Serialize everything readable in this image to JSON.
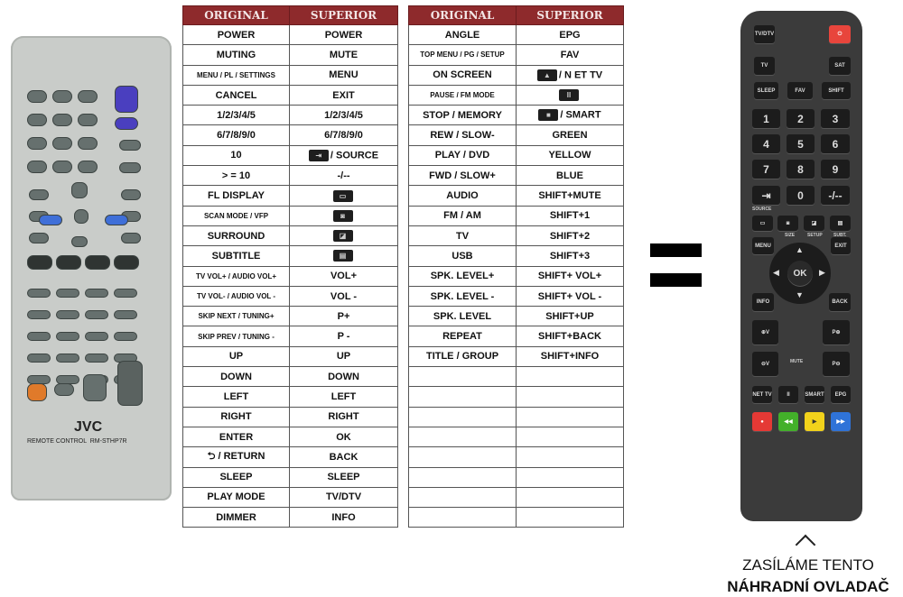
{
  "table_left": {
    "headers": [
      "ORIGINAL",
      "SUPERIOR"
    ],
    "rows": [
      {
        "o": "POWER",
        "s": "POWER"
      },
      {
        "o": "MUTING",
        "s": "MUTE"
      },
      {
        "o": "MENU / PL / SETTINGS",
        "o_small": true,
        "s": "MENU"
      },
      {
        "o": "CANCEL",
        "s": "EXIT"
      },
      {
        "o": "1/2/3/4/5",
        "s": "1/2/3/4/5"
      },
      {
        "o": "6/7/8/9/0",
        "s": "6/7/8/9/0"
      },
      {
        "o": "10",
        "s": "/ SOURCE",
        "icon": "source-icon"
      },
      {
        "o": "> = 10",
        "s": "-/--"
      },
      {
        "o": "FL DISPLAY",
        "s": "",
        "icon": "screen-icon"
      },
      {
        "o": "SCAN MODE / VFP",
        "o_small": true,
        "s": "",
        "icon": "size-icon"
      },
      {
        "o": "SURROUND",
        "s": "",
        "icon": "setup-icon"
      },
      {
        "o": "SUBTITLE",
        "s": "",
        "icon": "subtitle-icon"
      },
      {
        "o": "TV VOL+ / AUDIO VOL+",
        "o_small": true,
        "s": "VOL+"
      },
      {
        "o": "TV VOL- / AUDIO VOL -",
        "o_small": true,
        "s": "VOL -"
      },
      {
        "o": "SKIP NEXT / TUNING+",
        "o_small": true,
        "s": "P+"
      },
      {
        "o": "SKIP PREV / TUNING -",
        "o_small": true,
        "s": "P -"
      },
      {
        "o": "UP",
        "s": "UP"
      },
      {
        "o": "DOWN",
        "s": "DOWN"
      },
      {
        "o": "LEFT",
        "s": "LEFT"
      },
      {
        "o": "RIGHT",
        "s": "RIGHT"
      },
      {
        "o": "ENTER",
        "s": "OK"
      },
      {
        "o": "⮌ / RETURN",
        "s": "BACK"
      },
      {
        "o": "SLEEP",
        "s": "SLEEP"
      },
      {
        "o": "PLAY MODE",
        "s": "TV/DTV"
      },
      {
        "o": "DIMMER",
        "s": "INFO"
      }
    ]
  },
  "table_right": {
    "headers": [
      "ORIGINAL",
      "SUPERIOR"
    ],
    "rows": [
      {
        "o": "ANGLE",
        "s": "EPG"
      },
      {
        "o": "TOP MENU / PG / SETUP",
        "o_small": true,
        "s": "FAV"
      },
      {
        "o": "ON SCREEN",
        "s": "/ N ET TV",
        "icon": "up-triangle-icon"
      },
      {
        "o": "PAUSE / FM MODE",
        "o_small": true,
        "s": "",
        "icon": "pause-icon"
      },
      {
        "o": "STOP / MEMORY",
        "s": "/ SMART",
        "icon": "stop-icon"
      },
      {
        "o": "REW / SLOW-",
        "s": "GREEN"
      },
      {
        "o": "PLAY / DVD",
        "s": "YELLOW"
      },
      {
        "o": "FWD / SLOW+",
        "s": "BLUE"
      },
      {
        "o": "AUDIO",
        "s": "SHIFT+MUTE"
      },
      {
        "o": "FM / AM",
        "s": "SHIFT+1"
      },
      {
        "o": "TV",
        "s": "SHIFT+2"
      },
      {
        "o": "USB",
        "s": "SHIFT+3"
      },
      {
        "o": "SPK. LEVEL+",
        "s": "SHIFT+ VOL+"
      },
      {
        "o": "SPK. LEVEL -",
        "s": "SHIFT+ VOL -"
      },
      {
        "o": "SPK. LEVEL",
        "s": "SHIFT+UP"
      },
      {
        "o": "REPEAT",
        "s": "SHIFT+BACK"
      },
      {
        "o": "TITLE / GROUP",
        "s": "SHIFT+INFO"
      },
      {
        "o": "",
        "s": ""
      },
      {
        "o": "",
        "s": ""
      },
      {
        "o": "",
        "s": ""
      },
      {
        "o": "",
        "s": ""
      },
      {
        "o": "",
        "s": ""
      },
      {
        "o": "",
        "s": ""
      },
      {
        "o": "",
        "s": ""
      },
      {
        "o": "",
        "s": ""
      }
    ]
  },
  "original_remote": {
    "brand": "JVC",
    "model": "REMOTE CONTROL  RM-STHP7R"
  },
  "superior_remote": {
    "buttons": [
      "TV/DTV",
      "⏻",
      "TV",
      "SAT",
      "SLEEP",
      "FAV",
      "SHIFT",
      "1",
      "2",
      "3",
      "4",
      "5",
      "6",
      "7",
      "8",
      "9",
      "⇥",
      "0",
      "-/--",
      "▭",
      "◙",
      "◪",
      "▤",
      "MENU",
      "EXIT",
      "OK",
      "INFO",
      "BACK",
      "⊕V",
      "P⊕",
      "⊖V",
      "P⊖",
      "NET TV",
      "II",
      "SMART",
      "EPG",
      "●",
      "◀◀",
      "▶",
      "▶▶"
    ],
    "labels": [
      "SOURCE",
      "SIZE",
      "SETUP",
      "SUBT.",
      "MUTE"
    ],
    "colors": {
      "power": "#e8453c",
      "red": "#e53935",
      "green": "#43b02a",
      "yellow": "#f2d21b",
      "blue": "#2f73d8"
    }
  },
  "caption": {
    "line1": "ZASÍLÁME TENTO",
    "line2": "NÁHRADNÍ OVLADAČ"
  },
  "header_color": "#8e2a2c"
}
